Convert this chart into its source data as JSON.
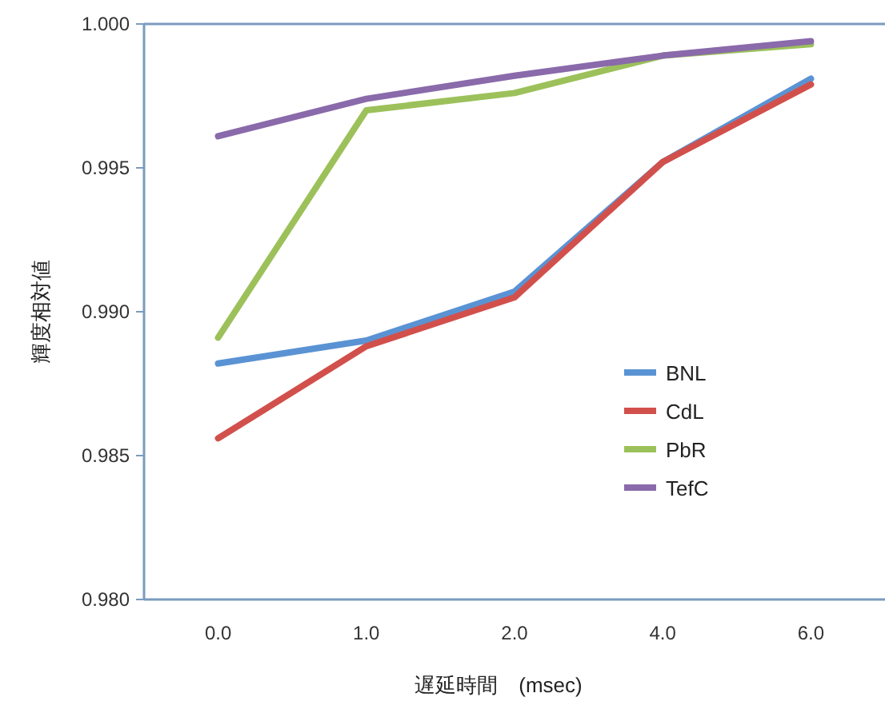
{
  "chart_data": {
    "type": "line",
    "xlabel": "遅延時間　(msec)",
    "ylabel": "輝度相対値",
    "categories": [
      "0.0",
      "1.0",
      "2.0",
      "4.0",
      "6.0"
    ],
    "ylim": [
      0.98,
      1.0
    ],
    "yticks": [
      {
        "value": 0.98,
        "label": "0.980"
      },
      {
        "value": 0.985,
        "label": "0.985"
      },
      {
        "value": 0.99,
        "label": "0.990"
      },
      {
        "value": 0.995,
        "label": "0.995"
      },
      {
        "value": 1.0,
        "label": "1.000"
      }
    ],
    "grid": false,
    "legend": "right",
    "marker": "none",
    "line_style": "solid",
    "series": [
      {
        "name": "BNL",
        "color": "#5a93d4",
        "values": [
          0.9882,
          0.989,
          0.9907,
          0.9952,
          0.9981
        ]
      },
      {
        "name": "CdL",
        "color": "#d2504c",
        "values": [
          0.9856,
          0.9888,
          0.9905,
          0.9952,
          0.9979
        ]
      },
      {
        "name": "PbR",
        "color": "#9cc15a",
        "values": [
          0.9891,
          0.997,
          0.9976,
          0.9989,
          0.9993
        ]
      },
      {
        "name": "TefC",
        "color": "#8a6aaa",
        "values": [
          0.9961,
          0.9974,
          0.9982,
          0.9989,
          0.9994
        ]
      }
    ]
  }
}
